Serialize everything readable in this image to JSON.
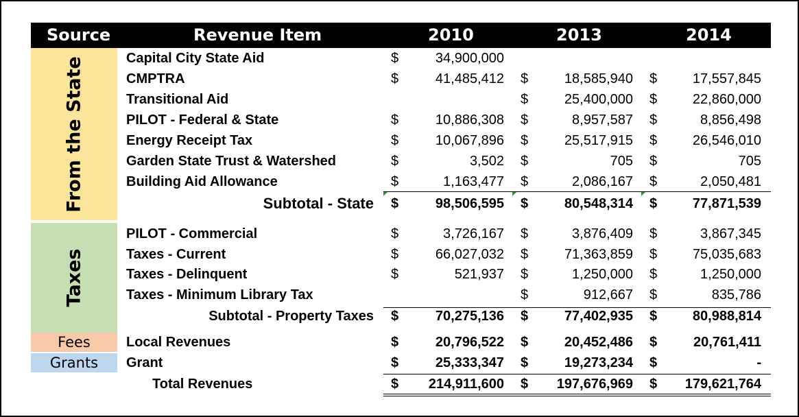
{
  "header": {
    "source": "Source",
    "revenue_item": "Revenue Item",
    "years": [
      "2010",
      "2013",
      "2014"
    ]
  },
  "colors": {
    "header_bg": "#000000",
    "header_text": "#ffffff",
    "state_block": "#fde49b",
    "taxes_block": "#c5dfb3",
    "fees_block": "#f9caa9",
    "grants_block": "#bdd7ee",
    "cell_marker": "#2e9b2e"
  },
  "sources": {
    "state": "From the State",
    "taxes": "Taxes",
    "fees": "Fees",
    "grants": "Grants"
  },
  "rows": [
    {
      "item": "Capital City State Aid",
      "c2010": [
        "$",
        "34,900,000"
      ],
      "c2013": [
        "",
        ""
      ],
      "c2014": [
        "",
        ""
      ]
    },
    {
      "item": "CMPTRA",
      "c2010": [
        "$",
        "41,485,412"
      ],
      "c2013": [
        "$",
        "18,585,940"
      ],
      "c2014": [
        "$",
        "17,557,845"
      ]
    },
    {
      "item": "Transitional Aid",
      "c2010": [
        "",
        ""
      ],
      "c2013": [
        "$",
        "25,400,000"
      ],
      "c2014": [
        "$",
        "22,860,000"
      ]
    },
    {
      "item": "PILOT - Federal & State",
      "c2010": [
        "$",
        "10,886,308"
      ],
      "c2013": [
        "$",
        "8,957,587"
      ],
      "c2014": [
        "$",
        "8,856,498"
      ]
    },
    {
      "item": "Energy Receipt Tax",
      "c2010": [
        "$",
        "10,067,896"
      ],
      "c2013": [
        "$",
        "25,517,915"
      ],
      "c2014": [
        "$",
        "26,546,010"
      ]
    },
    {
      "item": "Garden State Trust & Watershed",
      "c2010": [
        "$",
        "3,502"
      ],
      "c2013": [
        "$",
        "705"
      ],
      "c2014": [
        "$",
        "705"
      ]
    },
    {
      "item": "Building Aid Allowance",
      "c2010": [
        "$",
        "1,163,477"
      ],
      "c2013": [
        "$",
        "2,086,167"
      ],
      "c2014": [
        "$",
        "2,050,481"
      ]
    },
    {
      "item": "Subtotal - State",
      "c2010": [
        "$",
        "98,506,595"
      ],
      "c2013": [
        "$",
        "80,548,314"
      ],
      "c2014": [
        "$",
        "77,871,539"
      ]
    },
    {
      "item": "PILOT - Commercial",
      "c2010": [
        "$",
        "3,726,167"
      ],
      "c2013": [
        "$",
        "3,876,409"
      ],
      "c2014": [
        "$",
        "3,867,345"
      ]
    },
    {
      "item": "Taxes - Current",
      "c2010": [
        "$",
        "66,027,032"
      ],
      "c2013": [
        "$",
        "71,363,859"
      ],
      "c2014": [
        "$",
        "75,035,683"
      ]
    },
    {
      "item": "Taxes - Delinquent",
      "c2010": [
        "$",
        "521,937"
      ],
      "c2013": [
        "$",
        "1,250,000"
      ],
      "c2014": [
        "$",
        "1,250,000"
      ]
    },
    {
      "item": "Taxes - Minimum Library Tax",
      "c2010": [
        "",
        ""
      ],
      "c2013": [
        "$",
        "912,667"
      ],
      "c2014": [
        "$",
        "835,786"
      ]
    },
    {
      "item": "Subtotal - Property Taxes",
      "c2010": [
        "$",
        "70,275,136"
      ],
      "c2013": [
        "$",
        "77,402,935"
      ],
      "c2014": [
        "$",
        "80,988,814"
      ]
    },
    {
      "item": "Local Revenues",
      "c2010": [
        "$",
        "20,796,522"
      ],
      "c2013": [
        "$",
        "20,452,486"
      ],
      "c2014": [
        "$",
        "20,761,411"
      ]
    },
    {
      "item": "Grant",
      "c2010": [
        "$",
        "25,333,347"
      ],
      "c2013": [
        "$",
        "19,273,234"
      ],
      "c2014": [
        "$",
        "-"
      ]
    },
    {
      "item": "Total Revenues",
      "c2010": [
        "$",
        "214,911,600"
      ],
      "c2013": [
        "$",
        "197,676,969"
      ],
      "c2014": [
        "$",
        "179,621,764"
      ]
    }
  ]
}
